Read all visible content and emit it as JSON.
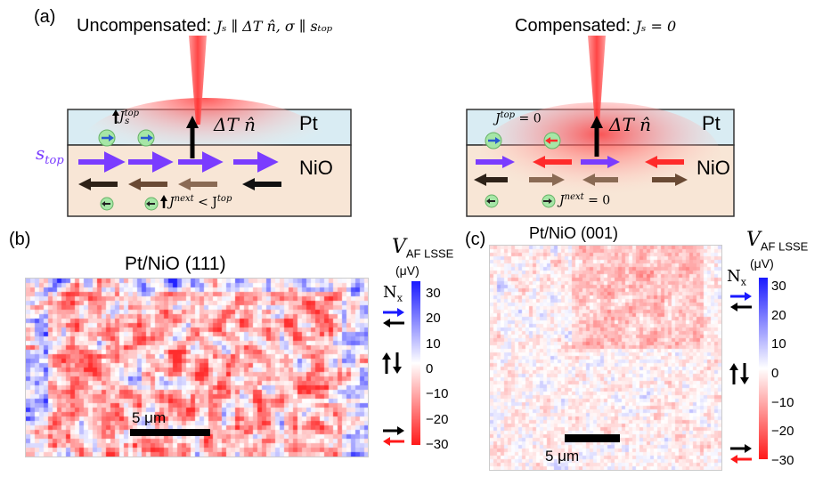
{
  "figure": {
    "panel_labels": {
      "a": "(a)",
      "b": "(b)",
      "c": "(c)"
    },
    "schematic_left": {
      "title_prefix": "Uncompensated:",
      "title_math": "Jₛ ∥ ΔT n̂,  σ ∥ sₜₒₚ",
      "pt_label": "Pt",
      "nio_label": "NiO",
      "dT_label": "ΔT n̂",
      "stop_label": "s",
      "stop_sub": "top",
      "js_top_label": "J",
      "js_top_sub": "s",
      "js_top_sup": "top",
      "js_next_label": "J",
      "js_next_rel": "< J",
      "js_next_sup": "next",
      "js_next_sup2": "top"
    },
    "schematic_right": {
      "title_prefix": "Compensated:",
      "title_math": "Jₛ = 0",
      "pt_label": "Pt",
      "nio_label": "NiO",
      "dT_label": "ΔT n̂",
      "js_top_eq": "= 0",
      "js_next_eq": "= 0",
      "js_sup_top": "top",
      "js_sup_next": "next",
      "js_sub": "s",
      "js_letter": "J"
    },
    "map_b": {
      "title": "Pt/NiO (111)",
      "scalebar": "5 μm"
    },
    "map_c": {
      "title": "Pt/NiO (001)",
      "scalebar": "5 μm"
    },
    "colorbar": {
      "label": "V",
      "label_sub": "AF LSSE",
      "unit": "(μV)",
      "nx_label": "N",
      "nx_sub": "x",
      "ticks": [
        "30",
        "20",
        "10",
        "0",
        "−10",
        "−20",
        "−30"
      ],
      "range": [
        -30,
        30
      ],
      "colors": {
        "max": "#1a1aff",
        "zero": "#ffffff",
        "min": "#ff1a1a"
      }
    }
  }
}
